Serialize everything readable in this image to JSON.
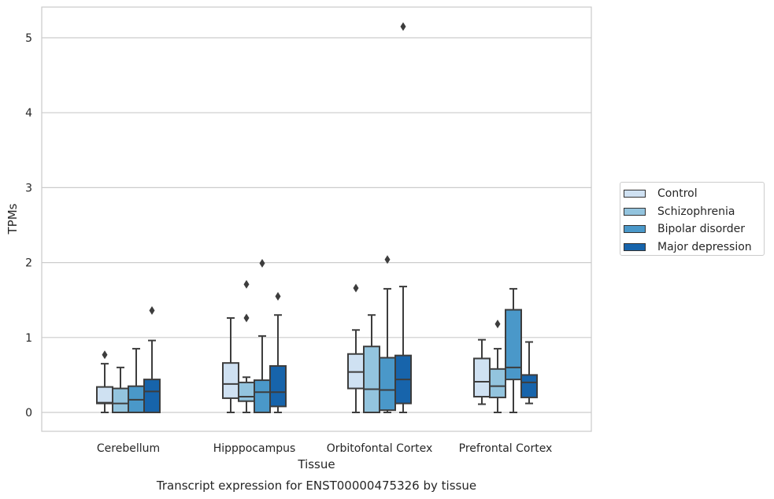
{
  "chart_data": {
    "type": "boxplot",
    "title": "Transcript expression for ENST00000475326 by tissue",
    "xlabel": "Tissue",
    "ylabel": "TPMs",
    "ylim": [
      -0.25,
      5.42
    ],
    "yticks": [
      0,
      1,
      2,
      3,
      4,
      5
    ],
    "grid": true,
    "legend_position": "right",
    "categories": [
      "Cerebellum",
      "Hipppocampus",
      "Orbitofontal Cortex",
      "Prefrontal Cortex"
    ],
    "series": [
      {
        "name": "Control",
        "color": "#cfe1f2",
        "boxes": [
          {
            "whisker_low": 0.0,
            "q1": 0.12,
            "median": 0.13,
            "q3": 0.34,
            "whisker_high": 0.65,
            "outliers": [
              0.77
            ]
          },
          {
            "whisker_low": 0.0,
            "q1": 0.19,
            "median": 0.38,
            "q3": 0.66,
            "whisker_high": 1.26,
            "outliers": []
          },
          {
            "whisker_low": 0.0,
            "q1": 0.32,
            "median": 0.54,
            "q3": 0.78,
            "whisker_high": 1.1,
            "outliers": [
              1.66
            ]
          },
          {
            "whisker_low": 0.11,
            "q1": 0.21,
            "median": 0.41,
            "q3": 0.72,
            "whisker_high": 0.97,
            "outliers": []
          }
        ]
      },
      {
        "name": "Schizophrenia",
        "color": "#93c4de",
        "boxes": [
          {
            "whisker_low": 0.0,
            "q1": 0.0,
            "median": 0.12,
            "q3": 0.32,
            "whisker_high": 0.6,
            "outliers": []
          },
          {
            "whisker_low": 0.0,
            "q1": 0.15,
            "median": 0.21,
            "q3": 0.4,
            "whisker_high": 0.47,
            "outliers": [
              1.26,
              1.71
            ]
          },
          {
            "whisker_low": 0.0,
            "q1": 0.0,
            "median": 0.31,
            "q3": 0.88,
            "whisker_high": 1.3,
            "outliers": []
          },
          {
            "whisker_low": 0.0,
            "q1": 0.2,
            "median": 0.35,
            "q3": 0.58,
            "whisker_high": 0.85,
            "outliers": [
              1.18
            ]
          }
        ]
      },
      {
        "name": "Bipolar disorder",
        "color": "#4a98c9",
        "boxes": [
          {
            "whisker_low": 0.0,
            "q1": 0.0,
            "median": 0.17,
            "q3": 0.35,
            "whisker_high": 0.85,
            "outliers": []
          },
          {
            "whisker_low": 0.0,
            "q1": 0.0,
            "median": 0.27,
            "q3": 0.43,
            "whisker_high": 1.02,
            "outliers": [
              1.99
            ]
          },
          {
            "whisker_low": 0.0,
            "q1": 0.03,
            "median": 0.3,
            "q3": 0.73,
            "whisker_high": 1.65,
            "outliers": [
              2.04
            ]
          },
          {
            "whisker_low": 0.0,
            "q1": 0.44,
            "median": 0.6,
            "q3": 1.37,
            "whisker_high": 1.65,
            "outliers": []
          }
        ]
      },
      {
        "name": "Major depression",
        "color": "#1764ab",
        "boxes": [
          {
            "whisker_low": 0.0,
            "q1": 0.0,
            "median": 0.28,
            "q3": 0.44,
            "whisker_high": 0.96,
            "outliers": [
              1.36
            ]
          },
          {
            "whisker_low": 0.0,
            "q1": 0.08,
            "median": 0.27,
            "q3": 0.62,
            "whisker_high": 1.3,
            "outliers": [
              1.55
            ]
          },
          {
            "whisker_low": 0.0,
            "q1": 0.12,
            "median": 0.44,
            "q3": 0.76,
            "whisker_high": 1.68,
            "outliers": [
              5.15
            ]
          },
          {
            "whisker_low": 0.12,
            "q1": 0.2,
            "median": 0.4,
            "q3": 0.5,
            "whisker_high": 0.94,
            "outliers": []
          }
        ]
      }
    ]
  }
}
